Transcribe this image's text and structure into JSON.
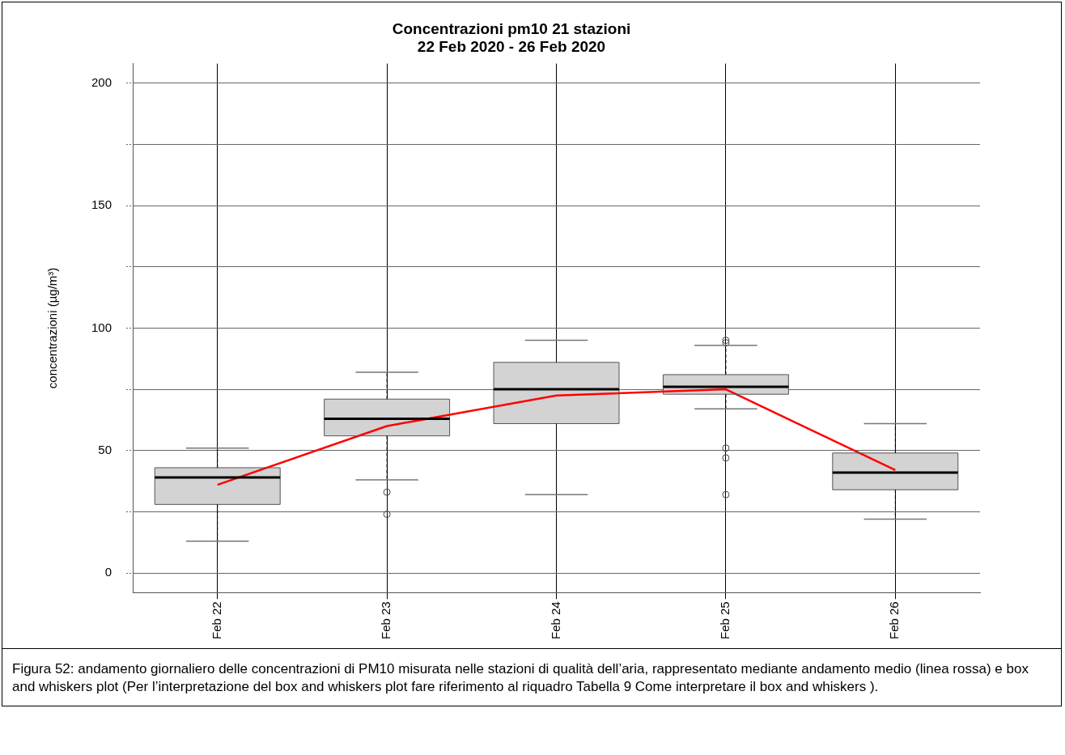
{
  "chart_data": {
    "type": "box",
    "title": "Concentrazioni pm10 21 stazioni",
    "subtitle": "22 Feb 2020 - 26 Feb 2020",
    "ylabel": "concentrazioni (µg/m³)",
    "categories": [
      "Feb 22",
      "Feb 23",
      "Feb 24",
      "Feb 25",
      "Feb 26"
    ],
    "boxes": [
      {
        "low": 13,
        "q1": 28,
        "median": 39,
        "q3": 43,
        "high": 51
      },
      {
        "low": 38,
        "q1": 56,
        "median": 63,
        "q3": 71,
        "high": 82,
        "outliers": [
          33,
          24
        ]
      },
      {
        "low": 32,
        "q1": 61,
        "median": 75,
        "q3": 86,
        "high": 95
      },
      {
        "low": 67,
        "q1": 73,
        "median": 76,
        "q3": 81,
        "high": 93,
        "outliers": [
          95,
          94,
          51,
          47,
          32
        ]
      },
      {
        "low": 22,
        "q1": 34,
        "median": 41,
        "q3": 49,
        "high": 61
      }
    ],
    "color": "#d3d3d3",
    "series": [
      {
        "type": "line",
        "color": "#ff0000",
        "values": [
          36,
          60,
          72.5,
          75,
          42
        ]
      }
    ],
    "ylim": [
      -8,
      208
    ],
    "yticks": [
      0,
      {
        "value": 25,
        "label": null
      },
      50,
      {
        "value": 75,
        "label": null
      },
      100,
      {
        "value": 125,
        "label": null
      },
      150,
      {
        "value": 175,
        "label": null
      },
      200
    ],
    "grid": true,
    "legend": false,
    "annotations": [
      "Figura 52: andamento giornaliero delle concentrazioni di PM10 misurata nelle stazioni di qualità dell’aria, rappresentato mediante andamento medio (linea rossa) e box and whiskers plot (Per l’interpretazione del box and whiskers plot fare riferimento al riquadro Tabella 9 Come interpretare il box and whiskers )."
    ]
  }
}
